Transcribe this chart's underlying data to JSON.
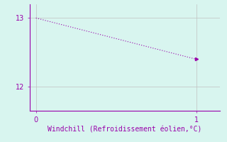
{
  "x": [
    0,
    1
  ],
  "y": [
    13,
    12.4
  ],
  "line_color": "#9900aa",
  "marker": ">",
  "marker_size": 3,
  "background_color": "#d8f5ef",
  "grid_color": "#c0c0c0",
  "xlabel": "Windchill (Refroidissement éolien,°C)",
  "xlabel_color": "#9900aa",
  "xlabel_fontsize": 7,
  "tick_color": "#9900aa",
  "tick_fontsize": 7,
  "xlim": [
    -0.04,
    1.15
  ],
  "ylim": [
    11.65,
    13.2
  ],
  "yticks": [
    12,
    13
  ],
  "xticks": [
    0,
    1
  ],
  "spine_color": "#9900aa",
  "line_width": 0.8,
  "fig_bg": "#d8f5ef",
  "figw": 3.2,
  "figh": 2.0,
  "dpi": 100
}
